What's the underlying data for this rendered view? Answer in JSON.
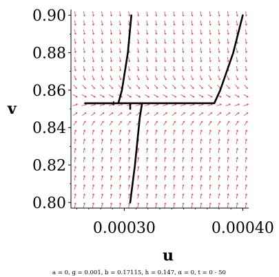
{
  "chart_data": {
    "type": "phase_portrait",
    "xlabel": "u",
    "ylabel": "v",
    "caption": "a = 0,    g = 0.001,  b = 0.17115,  h = 0.147,  α = 0,   t = 0 - 50",
    "xlim": [
      0.000255,
      0.000405
    ],
    "ylim": [
      0.797,
      0.903
    ],
    "x_ticks": [
      {
        "value": 0.0003,
        "label": "0.00030"
      },
      {
        "value": 0.0004,
        "label": "0.00040"
      }
    ],
    "y_ticks": [
      {
        "value": 0.8,
        "label": "0.80"
      },
      {
        "value": 0.82,
        "label": "0.82"
      },
      {
        "value": 0.84,
        "label": "0.84"
      },
      {
        "value": 0.86,
        "label": "0.86"
      },
      {
        "value": 0.88,
        "label": "0.88"
      },
      {
        "value": 0.9,
        "label": "0.90"
      }
    ],
    "direction_field": {
      "color": "#e23b3b",
      "description_columns": 20,
      "description_rows": 22,
      "slope_sign": "positive below nullcline, negative above",
      "nullcline_v": 0.853
    },
    "trajectories": [
      {
        "name": "traj-1",
        "points": [
          [
            0.000267,
            0.853
          ],
          [
            0.000295,
            0.853
          ],
          [
            0.000298,
            0.86
          ],
          [
            0.000303,
            0.88
          ],
          [
            0.000306,
            0.9
          ]
        ]
      },
      {
        "name": "traj-2",
        "points": [
          [
            0.000267,
            0.853
          ],
          [
            0.00034,
            0.853
          ],
          [
            0.00036,
            0.853
          ],
          [
            0.000376,
            0.853
          ],
          [
            0.000381,
            0.86
          ],
          [
            0.000392,
            0.88
          ],
          [
            0.0004,
            0.9
          ]
        ]
      },
      {
        "name": "traj-3",
        "points": [
          [
            0.000315,
            0.853
          ],
          [
            0.000313,
            0.845
          ],
          [
            0.000309,
            0.82
          ],
          [
            0.000305,
            0.8
          ]
        ]
      },
      {
        "name": "traj-4",
        "points": [
          [
            0.000305,
            0.853
          ],
          [
            0.000305,
            0.85
          ]
        ]
      }
    ],
    "trajectory_color": "#000000",
    "grid": false,
    "legend": "none"
  }
}
